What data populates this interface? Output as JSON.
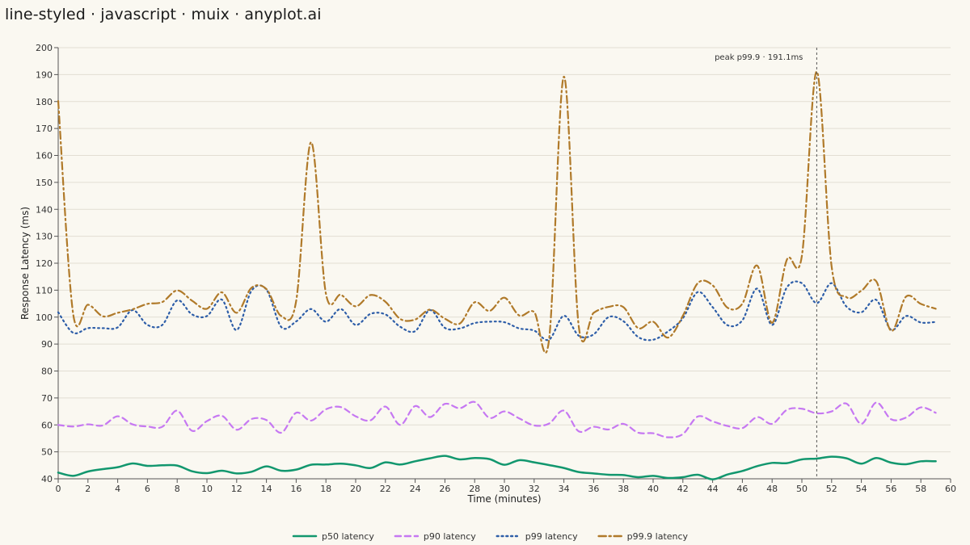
{
  "page": {
    "title": "line-styled · javascript · muix · anyplot.ai"
  },
  "chart_data": {
    "type": "line",
    "xlabel": "Time (minutes)",
    "ylabel": "Response Latency (ms)",
    "xlim": [
      0,
      60
    ],
    "ylim": [
      40,
      200
    ],
    "x_ticks": [
      0,
      2,
      4,
      6,
      8,
      10,
      12,
      14,
      16,
      18,
      20,
      22,
      24,
      26,
      28,
      30,
      32,
      34,
      36,
      38,
      40,
      42,
      44,
      46,
      48,
      50,
      52,
      54,
      56,
      58,
      60
    ],
    "y_ticks": [
      40,
      50,
      60,
      70,
      80,
      90,
      100,
      110,
      120,
      130,
      140,
      150,
      160,
      170,
      180,
      190,
      200
    ],
    "grid": {
      "horizontal": true,
      "vertical": false
    },
    "legend_position": "bottom-center",
    "x": [
      0,
      1,
      2,
      3,
      4,
      5,
      6,
      7,
      8,
      9,
      10,
      11,
      12,
      13,
      14,
      15,
      16,
      17,
      18,
      19,
      20,
      21,
      22,
      23,
      24,
      25,
      26,
      27,
      28,
      29,
      30,
      31,
      32,
      33,
      34,
      35,
      36,
      37,
      38,
      39,
      40,
      41,
      42,
      43,
      44,
      45,
      46,
      47,
      48,
      49,
      50,
      51,
      52,
      53,
      54,
      55,
      56,
      57,
      58,
      59
    ],
    "series": [
      {
        "name": "p50 latency",
        "color": "#12976e",
        "dash": "solid",
        "values": [
          42.3,
          41.1,
          42.7,
          43.6,
          44.3,
          45.7,
          44.8,
          45.0,
          44.9,
          42.8,
          42.1,
          43.0,
          42.0,
          42.6,
          44.6,
          43.0,
          43.4,
          45.2,
          45.3,
          45.6,
          45.0,
          44.0,
          46.1,
          45.3,
          46.5,
          47.6,
          48.5,
          47.2,
          47.7,
          47.3,
          45.2,
          46.9,
          46.1,
          45.1,
          44.0,
          42.5,
          42.0,
          41.5,
          41.4,
          40.6,
          41.1,
          40.3,
          40.6,
          41.5,
          39.8,
          41.6,
          42.9,
          44.7,
          45.9,
          45.8,
          47.2,
          47.5,
          48.2,
          47.6,
          45.6,
          47.7,
          46.0,
          45.4,
          46.5,
          46.5
        ]
      },
      {
        "name": "p90 latency",
        "color": "#c678f2",
        "dash": "dashed",
        "values": [
          60.0,
          59.4,
          60.2,
          59.8,
          63.2,
          60.2,
          59.4,
          59.3,
          65.3,
          57.8,
          61.4,
          63.4,
          58.2,
          62.2,
          61.8,
          57.1,
          64.5,
          61.6,
          65.8,
          66.6,
          63.2,
          61.7,
          66.8,
          60.0,
          67.0,
          62.9,
          67.8,
          66.2,
          68.5,
          62.6,
          65.0,
          62.4,
          59.8,
          60.5,
          65.3,
          57.6,
          59.3,
          58.3,
          60.4,
          57.1,
          56.9,
          55.4,
          56.6,
          63.1,
          61.3,
          59.6,
          58.8,
          62.9,
          60.4,
          65.6,
          66.0,
          64.3,
          65.0,
          67.9,
          60.4,
          68.3,
          62.1,
          62.7,
          66.5,
          64.5
        ]
      },
      {
        "name": "p99 latency",
        "color": "#2e5ea8",
        "dash": "dotted",
        "values": [
          101.8,
          94.2,
          95.9,
          95.9,
          96.2,
          102.6,
          97.1,
          97.1,
          106.2,
          101.0,
          100.4,
          106.5,
          95.2,
          109.8,
          110.2,
          96.3,
          98.4,
          103.0,
          98.3,
          103.0,
          97.1,
          101.2,
          101.0,
          96.4,
          94.8,
          102.6,
          96.0,
          95.8,
          97.8,
          98.3,
          98.1,
          95.8,
          95.0,
          91.6,
          100.5,
          93.1,
          93.6,
          100.0,
          98.5,
          92.6,
          91.6,
          94.7,
          99.6,
          109.3,
          103.7,
          97.0,
          98.8,
          110.6,
          97.1,
          111.1,
          112.6,
          105.2,
          112.6,
          103.9,
          101.8,
          106.4,
          95.3,
          100.4,
          98.0,
          98.2
        ]
      },
      {
        "name": "p99.9 latency",
        "color": "#b07a2a",
        "dash": "dashdot",
        "values": [
          180.2,
          101.4,
          104.6,
          100.3,
          101.6,
          102.9,
          104.9,
          105.6,
          109.9,
          106.1,
          103.1,
          109.2,
          101.6,
          110.9,
          110.4,
          100.4,
          106.0,
          164.9,
          108.7,
          108.3,
          104.0,
          108.2,
          105.7,
          99.3,
          99.1,
          102.8,
          99.4,
          97.6,
          105.5,
          102.3,
          107.2,
          100.6,
          101.9,
          91.5,
          189.2,
          96.5,
          101.6,
          103.8,
          103.7,
          95.9,
          98.3,
          92.4,
          100.5,
          112.6,
          111.8,
          103.5,
          105.0,
          119.1,
          97.9,
          121.4,
          122.7,
          191.1,
          118.8,
          107.4,
          109.8,
          113.3,
          94.9,
          107.6,
          104.9,
          103.1
        ]
      }
    ],
    "annotations": [
      {
        "x": 51,
        "label": "peak p99.9 · 191.1ms",
        "style": "dashed-vertical-line"
      }
    ]
  }
}
